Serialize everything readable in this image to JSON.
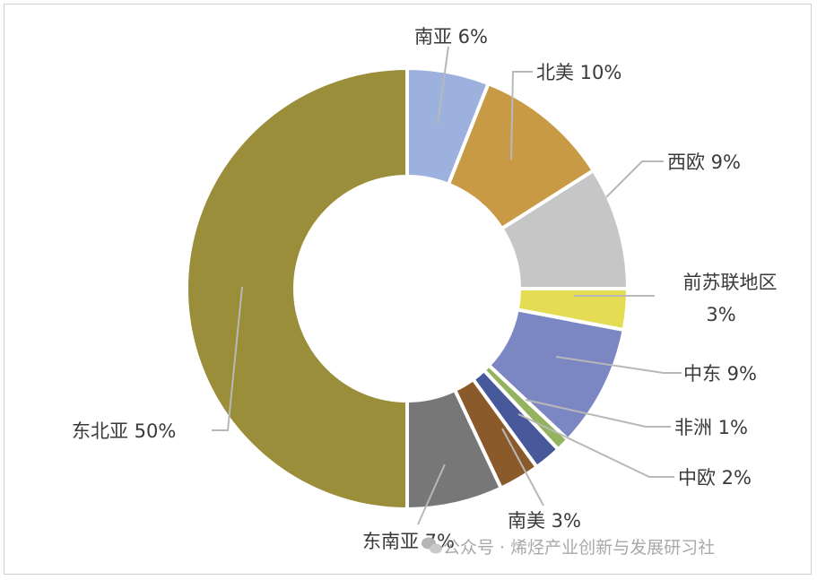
{
  "chart_data": {
    "type": "pie",
    "donut": true,
    "title": "",
    "legend": "none",
    "slices": [
      {
        "label": "南亚",
        "value_text": "6%",
        "value": 6,
        "color": "#9cb1dd"
      },
      {
        "label": "北美",
        "value_text": "10%",
        "value": 10,
        "color": "#c89a46"
      },
      {
        "label": "西欧",
        "value_text": "9%",
        "value": 9,
        "color": "#c6c6c6"
      },
      {
        "label": "前苏联地区",
        "value_text": "3%",
        "value": 3,
        "color": "#e4dc52"
      },
      {
        "label": "中东",
        "value_text": "9%",
        "value": 9,
        "color": "#7b87c3"
      },
      {
        "label": "非洲",
        "value_text": "1%",
        "value": 1,
        "color": "#94b35e"
      },
      {
        "label": "中欧",
        "value_text": "2%",
        "value": 2,
        "color": "#47599b"
      },
      {
        "label": "南美",
        "value_text": "3%",
        "value": 3,
        "color": "#8a5a2a"
      },
      {
        "label": "东南亚",
        "value_text": "7%",
        "value": 7,
        "color": "#777777"
      },
      {
        "label": "东北亚",
        "value_text": "50%",
        "value": 50,
        "color": "#9a8e3a"
      }
    ]
  },
  "watermark": {
    "text": "公众号 · 烯烃产业创新与发展研习社",
    "icon": "wechat-icon"
  }
}
